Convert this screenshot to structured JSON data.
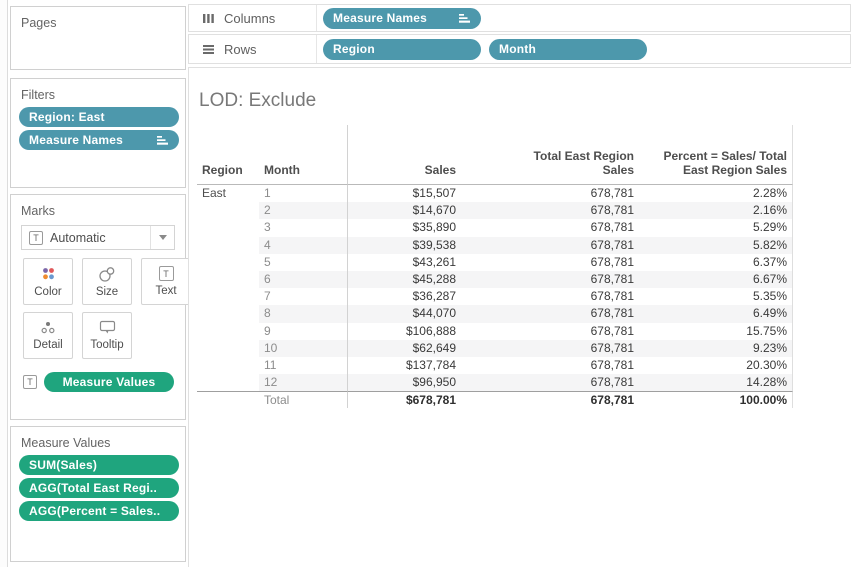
{
  "colors": {
    "pill_blue": "#4D98AC",
    "pill_green": "#1FA57E",
    "row_band": "#f5f5f6"
  },
  "shelves": {
    "columns": {
      "label": "Columns",
      "pills": [
        {
          "label": "Measure Names",
          "sorted": true
        }
      ]
    },
    "rows": {
      "label": "Rows",
      "pills": [
        {
          "label": "Region",
          "sorted": false
        },
        {
          "label": "Month",
          "sorted": false
        }
      ]
    }
  },
  "sidebar": {
    "pages": {
      "title": "Pages"
    },
    "filters": {
      "title": "Filters",
      "pills": [
        {
          "label": "Region: East",
          "sorted": false
        },
        {
          "label": "Measure Names",
          "sorted": true
        }
      ]
    },
    "marks": {
      "title": "Marks",
      "type_selector": {
        "icon": "text-mark-icon",
        "label": "Automatic"
      },
      "buttons": [
        {
          "name": "color",
          "label": "Color"
        },
        {
          "name": "size",
          "label": "Size"
        },
        {
          "name": "text",
          "label": "Text"
        },
        {
          "name": "detail",
          "label": "Detail"
        },
        {
          "name": "tooltip",
          "label": "Tooltip"
        }
      ],
      "target_pills": [
        {
          "label": "Measure Values"
        }
      ],
      "color_icon_dots": [
        "#7b66a8",
        "#e05759",
        "#ee8b2f",
        "#6a99d0"
      ]
    },
    "measure_values": {
      "title": "Measure Values",
      "pills": [
        {
          "label": "SUM(Sales)"
        },
        {
          "label": "AGG(Total East Regi.."
        },
        {
          "label": "AGG(Percent = Sales.."
        }
      ]
    }
  },
  "sheet": {
    "title": "LOD: Exclude",
    "table": {
      "headers": [
        {
          "key": "region",
          "lines": [
            "Region"
          ]
        },
        {
          "key": "month",
          "lines": [
            "Month"
          ]
        },
        {
          "key": "sales",
          "lines": [
            "Sales"
          ]
        },
        {
          "key": "total",
          "lines": [
            "Total East Region",
            "Sales"
          ]
        },
        {
          "key": "percent",
          "lines": [
            "Percent = Sales/ Total",
            "East Region Sales"
          ]
        }
      ],
      "rows": [
        {
          "region": "East",
          "month": "1",
          "sales": "$15,507",
          "total": "678,781",
          "percent": "2.28%",
          "is_total": false
        },
        {
          "region": "",
          "month": "2",
          "sales": "$14,670",
          "total": "678,781",
          "percent": "2.16%",
          "is_total": false
        },
        {
          "region": "",
          "month": "3",
          "sales": "$35,890",
          "total": "678,781",
          "percent": "5.29%",
          "is_total": false
        },
        {
          "region": "",
          "month": "4",
          "sales": "$39,538",
          "total": "678,781",
          "percent": "5.82%",
          "is_total": false
        },
        {
          "region": "",
          "month": "5",
          "sales": "$43,261",
          "total": "678,781",
          "percent": "6.37%",
          "is_total": false
        },
        {
          "region": "",
          "month": "6",
          "sales": "$45,288",
          "total": "678,781",
          "percent": "6.67%",
          "is_total": false
        },
        {
          "region": "",
          "month": "7",
          "sales": "$36,287",
          "total": "678,781",
          "percent": "5.35%",
          "is_total": false
        },
        {
          "region": "",
          "month": "8",
          "sales": "$44,070",
          "total": "678,781",
          "percent": "6.49%",
          "is_total": false
        },
        {
          "region": "",
          "month": "9",
          "sales": "$106,888",
          "total": "678,781",
          "percent": "15.75%",
          "is_total": false
        },
        {
          "region": "",
          "month": "10",
          "sales": "$62,649",
          "total": "678,781",
          "percent": "9.23%",
          "is_total": false
        },
        {
          "region": "",
          "month": "11",
          "sales": "$137,784",
          "total": "678,781",
          "percent": "20.30%",
          "is_total": false
        },
        {
          "region": "",
          "month": "12",
          "sales": "$96,950",
          "total": "678,781",
          "percent": "14.28%",
          "is_total": false
        },
        {
          "region": "",
          "month": "Total",
          "sales": "$678,781",
          "total": "678,781",
          "percent": "100.00%",
          "is_total": true
        }
      ]
    }
  }
}
